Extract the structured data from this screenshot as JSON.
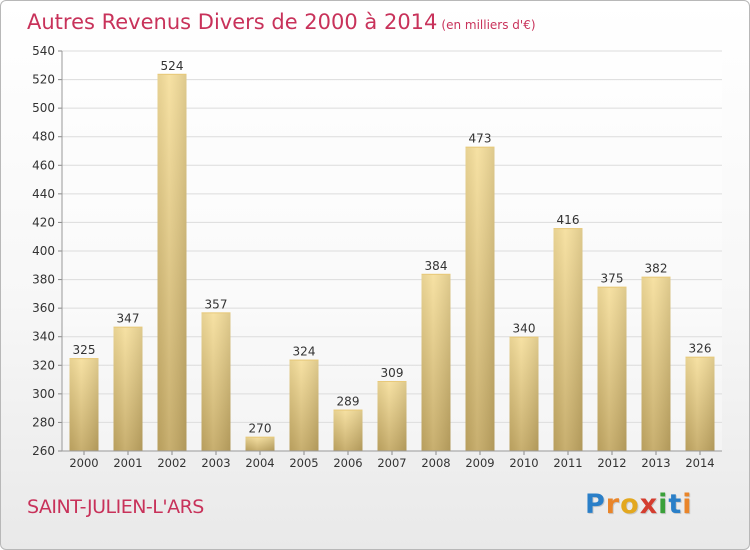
{
  "page": {
    "title": "Autres Revenus Divers de 2000 à 2014",
    "subtitle": "(en milliers d'€)",
    "town": "SAINT-JULIEN-L'ARS",
    "logo": "Proxiti",
    "colors": {
      "title": "#c8325a",
      "bar_top": "#f5dc96",
      "bar_bottom": "#c4a965",
      "grid": "#dddddd",
      "axis_text": "#333333"
    }
  },
  "chart_data": {
    "type": "bar",
    "title": "Autres Revenus Divers de 2000 à 2014",
    "subtitle": "(en milliers d'€)",
    "categories": [
      "2000",
      "2001",
      "2002",
      "2003",
      "2004",
      "2005",
      "2006",
      "2007",
      "2008",
      "2009",
      "2010",
      "2011",
      "2012",
      "2013",
      "2014"
    ],
    "values": [
      325,
      347,
      524,
      357,
      270,
      324,
      289,
      309,
      384,
      473,
      340,
      416,
      375,
      382,
      326
    ],
    "ylim": [
      260,
      540
    ],
    "yticks": [
      260,
      280,
      300,
      320,
      340,
      360,
      380,
      400,
      420,
      440,
      460,
      480,
      500,
      520,
      540
    ],
    "xlabel": "",
    "ylabel": "",
    "grid": true,
    "data_labels": true
  }
}
